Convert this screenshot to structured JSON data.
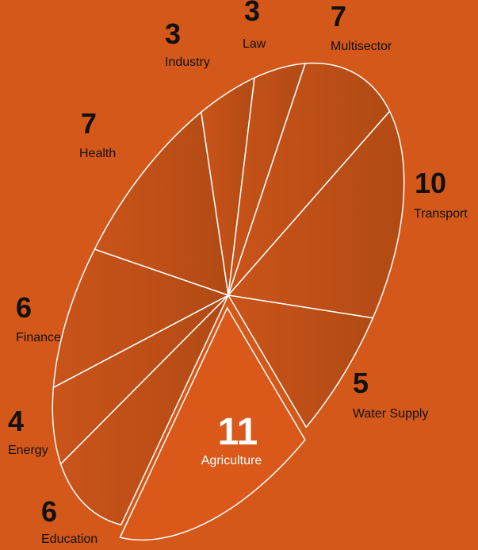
{
  "chart_data": {
    "type": "pie",
    "categories": [
      "Agriculture",
      "Education",
      "Energy",
      "Finance",
      "Health",
      "Industry",
      "Law",
      "Multisector",
      "Transport",
      "Water Supply"
    ],
    "values": [
      11,
      6,
      4,
      6,
      7,
      3,
      3,
      7,
      10,
      5
    ],
    "colors": [
      "#d9581a",
      "#b84d16",
      "#b84d16",
      "#b84d16",
      "#b84d16",
      "#b84d16",
      "#b84d16",
      "#b84d16",
      "#b84d16",
      "#b84d16"
    ],
    "background": "#d4581a"
  }
}
